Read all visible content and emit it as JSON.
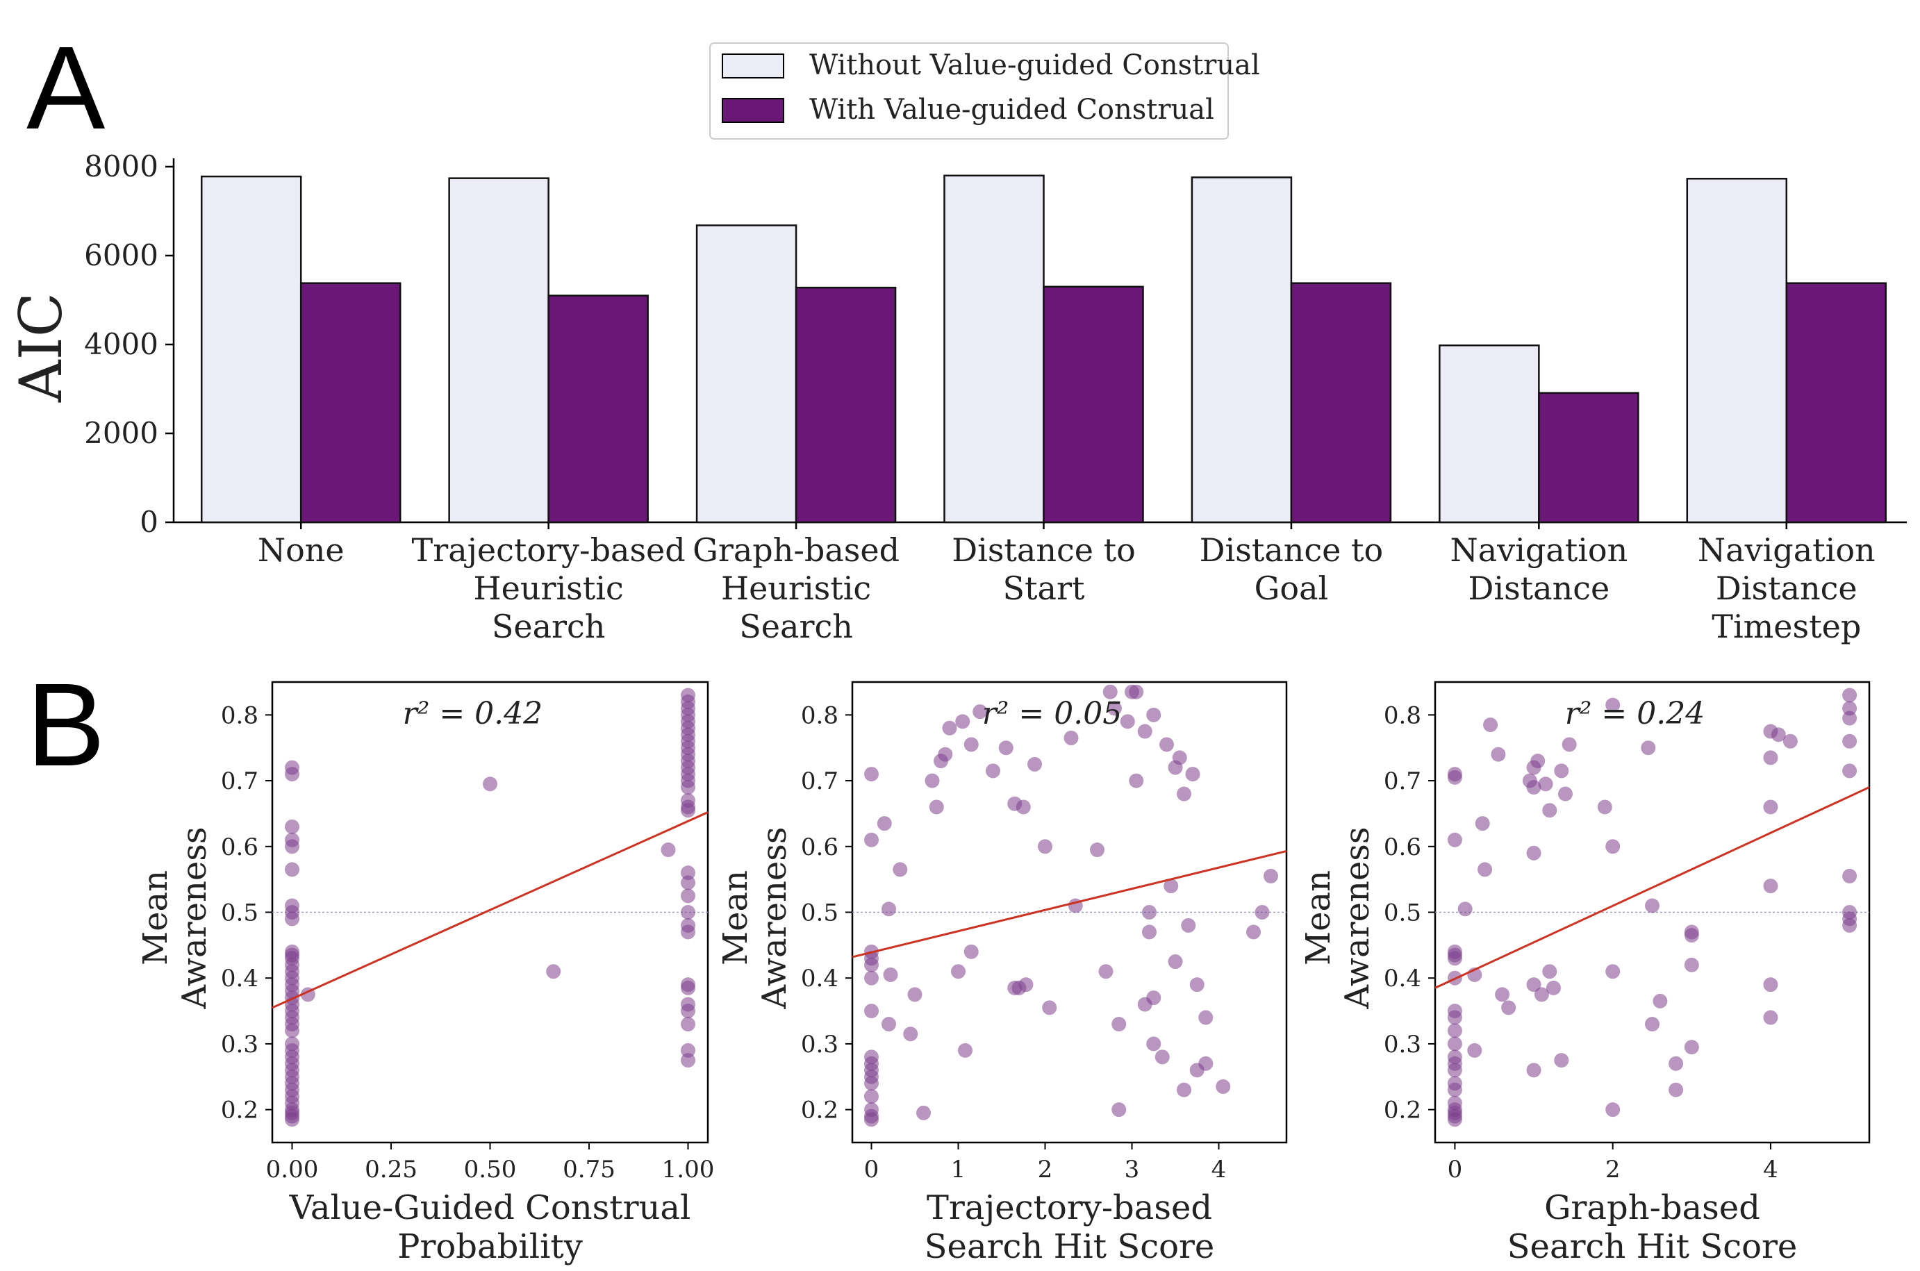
{
  "panels": {
    "a": "A",
    "b": "B"
  },
  "colors": {
    "without": "#ececf7",
    "with": "#6a1777",
    "point": "#7d3f8c",
    "fit": "#cc3322",
    "ref": "#9999bb"
  },
  "chart_data": [
    {
      "type": "bar",
      "panel": "A",
      "ylabel": "AIC",
      "ylim": [
        0,
        8000
      ],
      "yticks": [
        "0",
        "2000",
        "4000",
        "6000",
        "8000"
      ],
      "legend": {
        "position": "top-center",
        "entries": [
          "Without Value-guided Construal",
          "With Value-guided Construal"
        ]
      },
      "categories": [
        [
          "None"
        ],
        [
          "Trajectory-based",
          "Heuristic",
          "Search"
        ],
        [
          "Graph-based",
          "Heuristic",
          "Search"
        ],
        [
          "Distance to",
          "Start"
        ],
        [
          "Distance to",
          "Goal"
        ],
        [
          "Navigation",
          "Distance"
        ],
        [
          "Navigation",
          "Distance",
          "Timestep"
        ]
      ],
      "series": [
        {
          "name": "Without Value-guided Construal",
          "values": [
            7780,
            7740,
            6680,
            7800,
            7760,
            3980,
            7730
          ]
        },
        {
          "name": "With Value-guided Construal",
          "values": [
            5380,
            5100,
            5280,
            5300,
            5380,
            2910,
            5380
          ]
        }
      ]
    },
    {
      "type": "scatter",
      "panel": "B",
      "xlabel": [
        "Value-Guided Construal",
        "Probability"
      ],
      "ylabel": [
        "Mean",
        "Awareness"
      ],
      "annotation": "r² = 0.42",
      "xlim": [
        -0.05,
        1.05
      ],
      "ylim": [
        0.15,
        0.85
      ],
      "xticks": [
        0,
        0.25,
        0.5,
        0.75,
        1.0
      ],
      "xtick_labels": [
        "0.00",
        "0.25",
        "0.50",
        "0.75",
        "1.00"
      ],
      "yticks": [
        0.2,
        0.3,
        0.4,
        0.5,
        0.6,
        0.7,
        0.8
      ],
      "ytick_labels": [
        "0.2",
        "0.3",
        "0.4",
        "0.5",
        "0.6",
        "0.7",
        "0.8"
      ],
      "reference_y": 0.5,
      "fit": {
        "x0": -0.05,
        "y0": 0.355,
        "x1": 1.05,
        "y1": 0.652
      },
      "points": [
        [
          0,
          0.72
        ],
        [
          0,
          0.71
        ],
        [
          0,
          0.63
        ],
        [
          0,
          0.61
        ],
        [
          0,
          0.6
        ],
        [
          0,
          0.565
        ],
        [
          0,
          0.51
        ],
        [
          0,
          0.5
        ],
        [
          0,
          0.49
        ],
        [
          0,
          0.44
        ],
        [
          0,
          0.435
        ],
        [
          0,
          0.43
        ],
        [
          0,
          0.42
        ],
        [
          0,
          0.41
        ],
        [
          0,
          0.4
        ],
        [
          0,
          0.39
        ],
        [
          0,
          0.38
        ],
        [
          0,
          0.37
        ],
        [
          0,
          0.36
        ],
        [
          0,
          0.35
        ],
        [
          0,
          0.34
        ],
        [
          0,
          0.33
        ],
        [
          0,
          0.32
        ],
        [
          0,
          0.3
        ],
        [
          0,
          0.29
        ],
        [
          0,
          0.28
        ],
        [
          0,
          0.27
        ],
        [
          0,
          0.26
        ],
        [
          0,
          0.25
        ],
        [
          0,
          0.24
        ],
        [
          0,
          0.23
        ],
        [
          0,
          0.22
        ],
        [
          0,
          0.21
        ],
        [
          0,
          0.2
        ],
        [
          0,
          0.195
        ],
        [
          0,
          0.19
        ],
        [
          0,
          0.185
        ],
        [
          0.04,
          0.375
        ],
        [
          0.5,
          0.695
        ],
        [
          0.66,
          0.41
        ],
        [
          0.95,
          0.595
        ],
        [
          1,
          0.83
        ],
        [
          1,
          0.82
        ],
        [
          1,
          0.81
        ],
        [
          1,
          0.8
        ],
        [
          1,
          0.79
        ],
        [
          1,
          0.78
        ],
        [
          1,
          0.77
        ],
        [
          1,
          0.76
        ],
        [
          1,
          0.75
        ],
        [
          1,
          0.74
        ],
        [
          1,
          0.73
        ],
        [
          1,
          0.72
        ],
        [
          1,
          0.71
        ],
        [
          1,
          0.7
        ],
        [
          1,
          0.69
        ],
        [
          1,
          0.67
        ],
        [
          1,
          0.66
        ],
        [
          1,
          0.655
        ],
        [
          1,
          0.56
        ],
        [
          1,
          0.545
        ],
        [
          1,
          0.525
        ],
        [
          1,
          0.5
        ],
        [
          1,
          0.48
        ],
        [
          1,
          0.47
        ],
        [
          1,
          0.39
        ],
        [
          1,
          0.385
        ],
        [
          1,
          0.36
        ],
        [
          1,
          0.35
        ],
        [
          1,
          0.33
        ],
        [
          1,
          0.29
        ],
        [
          1,
          0.275
        ]
      ]
    },
    {
      "type": "scatter",
      "panel": "B",
      "xlabel": [
        "Trajectory-based",
        "Search Hit Score"
      ],
      "ylabel": [
        "Mean",
        "Awareness"
      ],
      "annotation": "r² = 0.05",
      "xlim": [
        -0.22,
        4.78
      ],
      "ylim": [
        0.15,
        0.85
      ],
      "xticks": [
        0,
        1,
        2,
        3,
        4
      ],
      "xtick_labels": [
        "0",
        "1",
        "2",
        "3",
        "4"
      ],
      "yticks": [
        0.2,
        0.3,
        0.4,
        0.5,
        0.6,
        0.7,
        0.8
      ],
      "ytick_labels": [
        "0.2",
        "0.3",
        "0.4",
        "0.5",
        "0.6",
        "0.7",
        "0.8"
      ],
      "reference_y": 0.5,
      "fit": {
        "x0": -0.22,
        "y0": 0.432,
        "x1": 4.78,
        "y1": 0.593
      },
      "points": [
        [
          0,
          0.71
        ],
        [
          0,
          0.61
        ],
        [
          0,
          0.44
        ],
        [
          0,
          0.43
        ],
        [
          0,
          0.42
        ],
        [
          0,
          0.4
        ],
        [
          0,
          0.35
        ],
        [
          0,
          0.28
        ],
        [
          0,
          0.27
        ],
        [
          0,
          0.26
        ],
        [
          0,
          0.25
        ],
        [
          0,
          0.24
        ],
        [
          0,
          0.22
        ],
        [
          0,
          0.2
        ],
        [
          0,
          0.19
        ],
        [
          0,
          0.185
        ],
        [
          0.15,
          0.635
        ],
        [
          0.2,
          0.505
        ],
        [
          0.2,
          0.33
        ],
        [
          0.22,
          0.405
        ],
        [
          0.33,
          0.565
        ],
        [
          0.45,
          0.315
        ],
        [
          0.5,
          0.375
        ],
        [
          0.6,
          0.195
        ],
        [
          0.7,
          0.7
        ],
        [
          0.75,
          0.66
        ],
        [
          0.8,
          0.73
        ],
        [
          0.85,
          0.74
        ],
        [
          0.9,
          0.78
        ],
        [
          1.0,
          0.41
        ],
        [
          1.05,
          0.79
        ],
        [
          1.08,
          0.29
        ],
        [
          1.15,
          0.755
        ],
        [
          1.15,
          0.44
        ],
        [
          1.25,
          0.805
        ],
        [
          1.4,
          0.715
        ],
        [
          1.55,
          0.75
        ],
        [
          1.65,
          0.665
        ],
        [
          1.65,
          0.385
        ],
        [
          1.7,
          0.385
        ],
        [
          1.75,
          0.66
        ],
        [
          1.78,
          0.39
        ],
        [
          1.88,
          0.725
        ],
        [
          2.0,
          0.6
        ],
        [
          2.05,
          0.355
        ],
        [
          2.3,
          0.765
        ],
        [
          2.35,
          0.51
        ],
        [
          2.6,
          0.595
        ],
        [
          2.7,
          0.41
        ],
        [
          2.75,
          0.835
        ],
        [
          2.8,
          0.81
        ],
        [
          2.85,
          0.33
        ],
        [
          2.85,
          0.2
        ],
        [
          2.95,
          0.79
        ],
        [
          3.0,
          0.835
        ],
        [
          3.05,
          0.7
        ],
        [
          3.05,
          0.835
        ],
        [
          3.15,
          0.775
        ],
        [
          3.15,
          0.36
        ],
        [
          3.2,
          0.47
        ],
        [
          3.2,
          0.5
        ],
        [
          3.25,
          0.8
        ],
        [
          3.25,
          0.37
        ],
        [
          3.25,
          0.3
        ],
        [
          3.35,
          0.28
        ],
        [
          3.4,
          0.755
        ],
        [
          3.45,
          0.54
        ],
        [
          3.5,
          0.72
        ],
        [
          3.5,
          0.425
        ],
        [
          3.55,
          0.735
        ],
        [
          3.6,
          0.23
        ],
        [
          3.6,
          0.68
        ],
        [
          3.65,
          0.48
        ],
        [
          3.7,
          0.71
        ],
        [
          3.75,
          0.39
        ],
        [
          3.75,
          0.26
        ],
        [
          3.85,
          0.27
        ],
        [
          3.85,
          0.34
        ],
        [
          4.05,
          0.235
        ],
        [
          4.4,
          0.47
        ],
        [
          4.5,
          0.5
        ],
        [
          4.6,
          0.555
        ]
      ]
    },
    {
      "type": "scatter",
      "panel": "B",
      "xlabel": [
        "Graph-based",
        "Search Hit Score"
      ],
      "ylabel": [
        "Mean",
        "Awareness"
      ],
      "annotation": "r² = 0.24",
      "xlim": [
        -0.25,
        5.25
      ],
      "ylim": [
        0.15,
        0.85
      ],
      "xticks": [
        0,
        2,
        4
      ],
      "xtick_labels": [
        "0",
        "2",
        "4"
      ],
      "yticks": [
        0.2,
        0.3,
        0.4,
        0.5,
        0.6,
        0.7,
        0.8
      ],
      "ytick_labels": [
        "0.2",
        "0.3",
        "0.4",
        "0.5",
        "0.6",
        "0.7",
        "0.8"
      ],
      "reference_y": 0.5,
      "fit": {
        "x0": -0.25,
        "y0": 0.385,
        "x1": 5.25,
        "y1": 0.69
      },
      "points": [
        [
          0,
          0.71
        ],
        [
          0,
          0.705
        ],
        [
          0,
          0.61
        ],
        [
          0,
          0.44
        ],
        [
          0,
          0.435
        ],
        [
          0,
          0.43
        ],
        [
          0,
          0.4
        ],
        [
          0,
          0.35
        ],
        [
          0,
          0.34
        ],
        [
          0,
          0.32
        ],
        [
          0,
          0.3
        ],
        [
          0,
          0.28
        ],
        [
          0,
          0.27
        ],
        [
          0,
          0.26
        ],
        [
          0,
          0.24
        ],
        [
          0,
          0.23
        ],
        [
          0,
          0.21
        ],
        [
          0,
          0.2
        ],
        [
          0,
          0.195
        ],
        [
          0,
          0.19
        ],
        [
          0,
          0.185
        ],
        [
          0.13,
          0.505
        ],
        [
          0.25,
          0.29
        ],
        [
          0.25,
          0.405
        ],
        [
          0.35,
          0.635
        ],
        [
          0.38,
          0.565
        ],
        [
          0.45,
          0.785
        ],
        [
          0.55,
          0.74
        ],
        [
          0.6,
          0.375
        ],
        [
          0.68,
          0.355
        ],
        [
          0.95,
          0.7
        ],
        [
          1.0,
          0.72
        ],
        [
          1.0,
          0.69
        ],
        [
          1.0,
          0.59
        ],
        [
          1.0,
          0.39
        ],
        [
          1.05,
          0.73
        ],
        [
          1.1,
          0.375
        ],
        [
          1.15,
          0.695
        ],
        [
          1.2,
          0.655
        ],
        [
          1.2,
          0.41
        ],
        [
          1.25,
          0.385
        ],
        [
          1.35,
          0.715
        ],
        [
          1.35,
          0.275
        ],
        [
          1.4,
          0.68
        ],
        [
          1.45,
          0.755
        ],
        [
          1.0,
          0.26
        ],
        [
          1.9,
          0.66
        ],
        [
          2.0,
          0.815
        ],
        [
          2.0,
          0.6
        ],
        [
          2.0,
          0.41
        ],
        [
          2.0,
          0.2
        ],
        [
          2.45,
          0.75
        ],
        [
          2.5,
          0.51
        ],
        [
          2.5,
          0.33
        ],
        [
          2.6,
          0.365
        ],
        [
          2.8,
          0.27
        ],
        [
          2.8,
          0.23
        ],
        [
          3.0,
          0.47
        ],
        [
          3.0,
          0.465
        ],
        [
          3.0,
          0.42
        ],
        [
          3.0,
          0.295
        ],
        [
          4.0,
          0.775
        ],
        [
          4.0,
          0.735
        ],
        [
          4.0,
          0.66
        ],
        [
          4.0,
          0.54
        ],
        [
          4.0,
          0.39
        ],
        [
          4.0,
          0.34
        ],
        [
          4.1,
          0.77
        ],
        [
          4.25,
          0.76
        ],
        [
          5.0,
          0.83
        ],
        [
          5.0,
          0.81
        ],
        [
          5.0,
          0.795
        ],
        [
          5.0,
          0.76
        ],
        [
          5.0,
          0.715
        ],
        [
          5.0,
          0.555
        ],
        [
          5.0,
          0.5
        ],
        [
          5.0,
          0.49
        ],
        [
          5.0,
          0.48
        ]
      ]
    }
  ]
}
